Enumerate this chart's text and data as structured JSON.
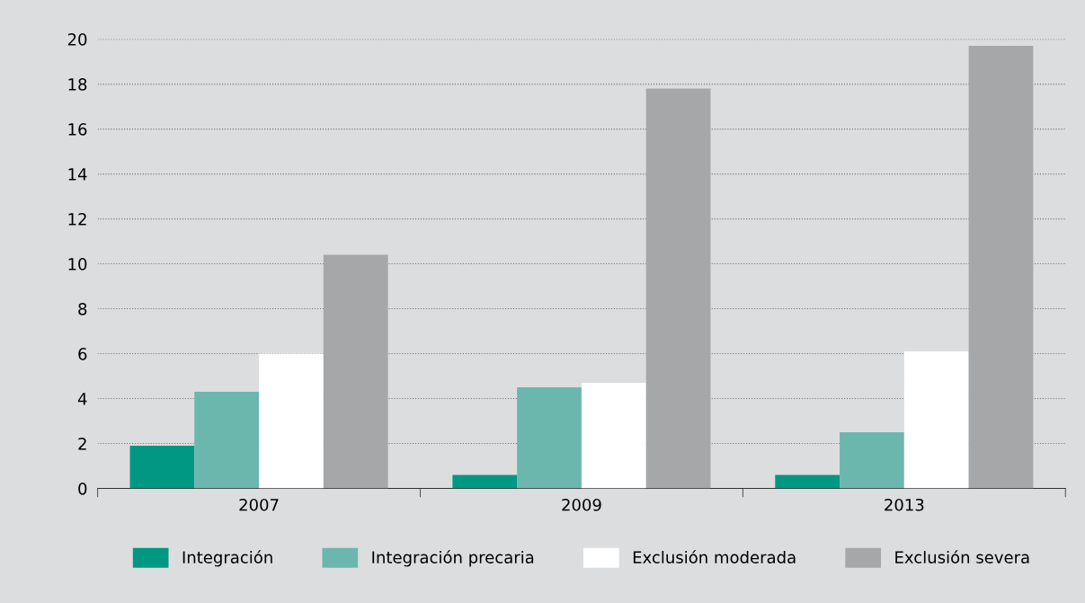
{
  "chart_data": {
    "type": "bar",
    "categories": [
      "2007",
      "2009",
      "2013"
    ],
    "series": [
      {
        "name": "Integración",
        "color": "#009882",
        "values": [
          1.9,
          0.6,
          0.6
        ]
      },
      {
        "name": "Integración precaria",
        "color": "#6bb7ae",
        "values": [
          4.3,
          4.5,
          2.5
        ]
      },
      {
        "name": "Exclusión moderada",
        "color": "#ffffff",
        "values": [
          6.0,
          4.7,
          6.1
        ]
      },
      {
        "name": "Exclusión severa",
        "color": "#a6a7a9",
        "values": [
          10.4,
          17.8,
          19.7
        ]
      }
    ],
    "ylim": [
      0,
      20
    ],
    "yticks": [
      0,
      2,
      4,
      6,
      8,
      10,
      12,
      14,
      16,
      18,
      20
    ],
    "grid": "y",
    "legend": "bottom"
  }
}
